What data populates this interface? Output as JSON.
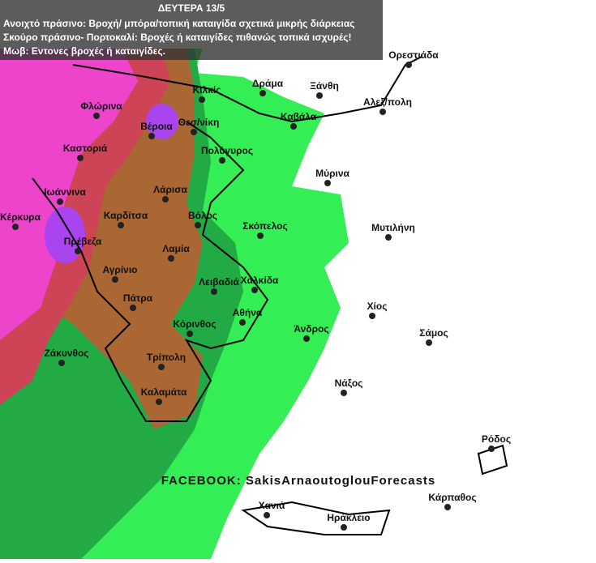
{
  "header": {
    "title": "ΔΕΥΤΕΡΑ 13/5",
    "legend": [
      "Ανοιχτό πράσινο: Βροχή/ μπόρα/τοπική καταιγίδα σχετικά μικρής διάρκειας",
      "Σκούρο πράσινο- Πορτοκαλί: Βροχές ή καταιγίδες πιθανώς τοπικά ισχυρές!",
      "Μωβ: Εντονες βροχές ή καταιγίδες."
    ]
  },
  "watermark": "FACEBOOK: SakisArnaoutoglouForecasts",
  "cities": [
    "Ορεστιάδα",
    "Δράμα",
    "Ξάνθη",
    "Κιλκίς",
    "Φλώρινα",
    "Αλεξ/πολη",
    "Βέροια",
    "Θεσ/νίκη",
    "Καβάλα",
    "Καστοριά",
    "Πολύγυρος",
    "Μύρινα",
    "Ιωάννινα",
    "Λάρισα",
    "Κέρκυρα",
    "Καρδίτσα",
    "Βόλος",
    "Σκόπελος",
    "Μυτιλήνη",
    "Πρέβεζα",
    "Λαμία",
    "Αγρίνιο",
    "Λειβαδιά",
    "Χαλκίδα",
    "Πάτρα",
    "Χίος",
    "Αθήνα",
    "Κόρινθος",
    "Άνδρος",
    "Σάμος",
    "Ζάκυνθος",
    "Τρίπολη",
    "Νάξος",
    "Καλαμάτα",
    "Ρόδος",
    "Κάρπαθος",
    "Χανιά",
    "Ηράκλειο"
  ]
}
